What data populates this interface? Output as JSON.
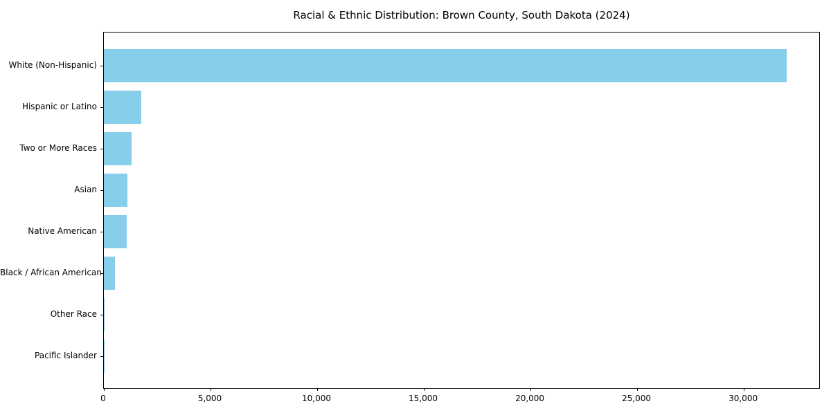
{
  "chart_data": {
    "type": "bar",
    "orientation": "horizontal",
    "title": "Racial & Ethnic Distribution: Brown County, South Dakota (2024)",
    "categories": [
      "White (Non-Hispanic)",
      "Hispanic or Latino",
      "Two or More Races",
      "Asian",
      "Native American",
      "Black / African American",
      "Other Race",
      "Pacific Islander"
    ],
    "values": [
      32000,
      1750,
      1300,
      1100,
      1080,
      520,
      30,
      15
    ],
    "xlabel": "",
    "ylabel": "",
    "xlim": [
      0,
      33600
    ],
    "xticks": [
      0,
      5000,
      10000,
      15000,
      20000,
      25000,
      30000
    ],
    "xtick_labels": [
      "0",
      "5,000",
      "10,000",
      "15,000",
      "20,000",
      "25,000",
      "30,000"
    ],
    "bar_color": "#87CEEB",
    "spine_color": "#000000",
    "background_color": "#ffffff",
    "grid": false,
    "legend_position": "none"
  }
}
